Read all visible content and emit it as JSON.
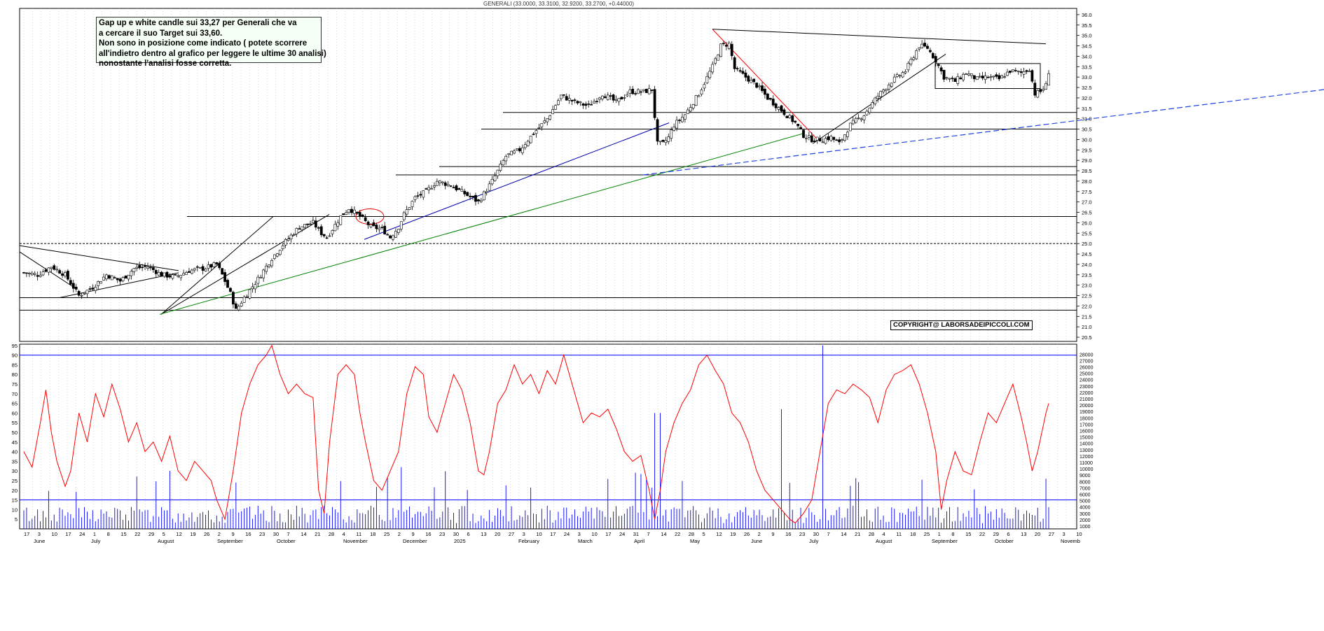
{
  "chart_data": {
    "type": "line",
    "title": "GENERALI (33.0000, 33.3100, 32.9200, 33.2700, +0.44000)",
    "annotation": {
      "lines": [
        "Gap up e white candle sui 33,27 per Generali che va",
        "a cercare il suo Target sui 33,60.",
        "Non sono in posizione come indicato ( potete scorrere",
        "all'indietro dentro al grafico per leggere le ultime 30 analisi)",
        "nonostante l'analisi fosse corretta."
      ]
    },
    "copyright": "COPYRIGHT@ LABORSADEIPICCOLI.COM",
    "price_panel": {
      "ylim": [
        20.3,
        36.3
      ],
      "yticks": [
        "20.5",
        "21.0",
        "21.5",
        "22.0",
        "22.5",
        "23.0",
        "23.5",
        "24.0",
        "24.5",
        "25.0",
        "25.5",
        "26.0",
        "26.5",
        "27.0",
        "27.5",
        "28.0",
        "28.5",
        "29.0",
        "29.5",
        "30.0",
        "30.5",
        "31.0",
        "31.5",
        "32.0",
        "32.5",
        "33.0",
        "33.5",
        "34.0",
        "34.5",
        "35.0",
        "35.5",
        "36.0"
      ],
      "close_series": {
        "name": "Close",
        "points": [
          [
            0,
            23.6
          ],
          [
            5,
            23.5
          ],
          [
            10,
            23.9
          ],
          [
            15,
            23.5
          ],
          [
            18,
            22.9
          ],
          [
            20,
            22.5
          ],
          [
            25,
            22.9
          ],
          [
            30,
            23.5
          ],
          [
            35,
            23.2
          ],
          [
            40,
            23.8
          ],
          [
            45,
            23.9
          ],
          [
            50,
            23.5
          ],
          [
            55,
            23.4
          ],
          [
            60,
            23.7
          ],
          [
            65,
            23.8
          ],
          [
            70,
            24.0
          ],
          [
            72,
            23.5
          ],
          [
            75,
            22.6
          ],
          [
            77,
            21.8
          ],
          [
            80,
            22.4
          ],
          [
            85,
            23.3
          ],
          [
            90,
            24.3
          ],
          [
            95,
            25.1
          ],
          [
            100,
            25.8
          ],
          [
            105,
            26.0
          ],
          [
            108,
            25.5
          ],
          [
            110,
            25.3
          ],
          [
            115,
            26.3
          ],
          [
            118,
            26.7
          ],
          [
            122,
            26.3
          ],
          [
            126,
            25.8
          ],
          [
            130,
            25.7
          ],
          [
            133,
            25.3
          ],
          [
            136,
            25.8
          ],
          [
            138,
            26.4
          ],
          [
            142,
            27.2
          ],
          [
            146,
            27.5
          ],
          [
            150,
            28.0
          ],
          [
            155,
            27.8
          ],
          [
            160,
            27.4
          ],
          [
            165,
            27.0
          ],
          [
            170,
            28.0
          ],
          [
            175,
            29.2
          ],
          [
            180,
            29.5
          ],
          [
            185,
            30.3
          ],
          [
            190,
            31.0
          ],
          [
            195,
            32.1
          ],
          [
            200,
            31.8
          ],
          [
            205,
            31.6
          ],
          [
            210,
            32.2
          ],
          [
            215,
            31.8
          ],
          [
            220,
            32.3
          ],
          [
            225,
            32.3
          ],
          [
            228,
            32.4
          ],
          [
            230,
            29.8
          ],
          [
            232,
            29.8
          ],
          [
            234,
            30.1
          ],
          [
            236,
            30.7
          ],
          [
            240,
            31.2
          ],
          [
            245,
            32.2
          ],
          [
            250,
            33.5
          ],
          [
            253,
            34.5
          ],
          [
            256,
            34.6
          ],
          [
            258,
            33.4
          ],
          [
            262,
            33.0
          ],
          [
            266,
            32.6
          ],
          [
            270,
            32.0
          ],
          [
            275,
            31.4
          ],
          [
            280,
            30.8
          ],
          [
            283,
            30.2
          ],
          [
            286,
            30.0
          ],
          [
            290,
            30.0
          ],
          [
            293,
            30.1
          ],
          [
            296,
            29.8
          ],
          [
            300,
            30.7
          ],
          [
            305,
            31.2
          ],
          [
            310,
            32.1
          ],
          [
            315,
            32.8
          ],
          [
            320,
            33.3
          ],
          [
            325,
            34.5
          ],
          [
            328,
            34.4
          ],
          [
            331,
            33.8
          ],
          [
            334,
            33.0
          ],
          [
            338,
            32.8
          ],
          [
            342,
            33.2
          ],
          [
            346,
            32.9
          ],
          [
            350,
            33.0
          ],
          [
            354,
            32.9
          ],
          [
            358,
            33.3
          ],
          [
            362,
            33.2
          ],
          [
            365,
            33.4
          ],
          [
            367,
            32.2
          ],
          [
            369,
            32.3
          ],
          [
            371,
            32.6
          ],
          [
            372,
            33.27
          ]
        ]
      }
    },
    "rsi_panel": {
      "name": "RSI",
      "ylim": [
        0,
        100
      ],
      "yticks": [
        "5",
        "10",
        "15",
        "20",
        "25",
        "30",
        "35",
        "40",
        "45",
        "50",
        "55",
        "60",
        "65",
        "70",
        "75",
        "80",
        "85",
        "90",
        "95"
      ],
      "levels": [
        15,
        90
      ],
      "points": [
        [
          0,
          40
        ],
        [
          3,
          32
        ],
        [
          6,
          55
        ],
        [
          8,
          72
        ],
        [
          10,
          50
        ],
        [
          12,
          35
        ],
        [
          15,
          22
        ],
        [
          17,
          30
        ],
        [
          20,
          60
        ],
        [
          23,
          45
        ],
        [
          26,
          70
        ],
        [
          29,
          58
        ],
        [
          32,
          75
        ],
        [
          35,
          62
        ],
        [
          38,
          45
        ],
        [
          41,
          55
        ],
        [
          44,
          40
        ],
        [
          47,
          45
        ],
        [
          50,
          35
        ],
        [
          53,
          48
        ],
        [
          56,
          30
        ],
        [
          59,
          25
        ],
        [
          62,
          35
        ],
        [
          65,
          30
        ],
        [
          68,
          25
        ],
        [
          70,
          15
        ],
        [
          73,
          5
        ],
        [
          76,
          30
        ],
        [
          79,
          60
        ],
        [
          82,
          75
        ],
        [
          85,
          85
        ],
        [
          88,
          90
        ],
        [
          90,
          95
        ],
        [
          93,
          80
        ],
        [
          96,
          70
        ],
        [
          99,
          75
        ],
        [
          102,
          70
        ],
        [
          105,
          68
        ],
        [
          107,
          20
        ],
        [
          109,
          8
        ],
        [
          111,
          45
        ],
        [
          114,
          80
        ],
        [
          117,
          85
        ],
        [
          120,
          80
        ],
        [
          122,
          60
        ],
        [
          124,
          45
        ],
        [
          127,
          25
        ],
        [
          130,
          20
        ],
        [
          133,
          30
        ],
        [
          136,
          40
        ],
        [
          139,
          70
        ],
        [
          142,
          84
        ],
        [
          145,
          80
        ],
        [
          147,
          58
        ],
        [
          150,
          50
        ],
        [
          153,
          65
        ],
        [
          156,
          80
        ],
        [
          159,
          72
        ],
        [
          162,
          55
        ],
        [
          165,
          30
        ],
        [
          167,
          28
        ],
        [
          169,
          40
        ],
        [
          172,
          65
        ],
        [
          175,
          72
        ],
        [
          178,
          85
        ],
        [
          181,
          75
        ],
        [
          184,
          80
        ],
        [
          187,
          70
        ],
        [
          190,
          82
        ],
        [
          193,
          75
        ],
        [
          196,
          90
        ],
        [
          198,
          80
        ],
        [
          200,
          70
        ],
        [
          203,
          55
        ],
        [
          206,
          60
        ],
        [
          209,
          58
        ],
        [
          212,
          62
        ],
        [
          215,
          52
        ],
        [
          218,
          40
        ],
        [
          221,
          35
        ],
        [
          224,
          38
        ],
        [
          227,
          20
        ],
        [
          229,
          5
        ],
        [
          231,
          20
        ],
        [
          233,
          40
        ],
        [
          236,
          55
        ],
        [
          239,
          65
        ],
        [
          242,
          72
        ],
        [
          245,
          85
        ],
        [
          248,
          90
        ],
        [
          251,
          82
        ],
        [
          254,
          75
        ],
        [
          257,
          60
        ],
        [
          260,
          55
        ],
        [
          263,
          45
        ],
        [
          266,
          30
        ],
        [
          269,
          20
        ],
        [
          272,
          15
        ],
        [
          275,
          10
        ],
        [
          278,
          5
        ],
        [
          280,
          3
        ],
        [
          283,
          8
        ],
        [
          286,
          15
        ],
        [
          289,
          40
        ],
        [
          292,
          65
        ],
        [
          295,
          72
        ],
        [
          298,
          70
        ],
        [
          301,
          75
        ],
        [
          304,
          72
        ],
        [
          307,
          68
        ],
        [
          310,
          55
        ],
        [
          313,
          72
        ],
        [
          316,
          80
        ],
        [
          319,
          82
        ],
        [
          322,
          85
        ],
        [
          325,
          75
        ],
        [
          328,
          60
        ],
        [
          331,
          40
        ],
        [
          333,
          10
        ],
        [
          335,
          25
        ],
        [
          338,
          40
        ],
        [
          341,
          30
        ],
        [
          344,
          28
        ],
        [
          347,
          45
        ],
        [
          350,
          60
        ],
        [
          353,
          55
        ],
        [
          356,
          65
        ],
        [
          359,
          75
        ],
        [
          362,
          58
        ],
        [
          364,
          45
        ],
        [
          366,
          30
        ],
        [
          368,
          40
        ],
        [
          371,
          60
        ],
        [
          372,
          65
        ]
      ]
    },
    "volume_panel": {
      "name": "Volume",
      "yticks": [
        "1000",
        "2000",
        "3000",
        "4000",
        "5000",
        "6000",
        "7000",
        "8000",
        "9000",
        "10000",
        "11000",
        "12000",
        "13000",
        "14000",
        "15000",
        "16000",
        "17000",
        "18000",
        "19000",
        "20000",
        "21000",
        "22000",
        "23000",
        "24000",
        "25000",
        "26000",
        "27000",
        "28000"
      ]
    },
    "x_axis": {
      "day_labels": [
        "17",
        "3",
        "10",
        "17",
        "24",
        "1",
        "8",
        "15",
        "22",
        "29",
        "5",
        "12",
        "19",
        "26",
        "2",
        "9",
        "16",
        "23",
        "30",
        "7",
        "14",
        "21",
        "28",
        "4",
        "11",
        "18",
        "25",
        "2",
        "9",
        "16",
        "23",
        "30",
        "6",
        "13",
        "20",
        "27",
        "3",
        "10",
        "17",
        "24",
        "3",
        "10",
        "17",
        "24",
        "31",
        "7",
        "14",
        "22",
        "28",
        "5",
        "12",
        "19",
        "26",
        "2",
        "9",
        "16",
        "23",
        "30",
        "7",
        "14",
        "21",
        "28",
        "4",
        "11",
        "18",
        "25",
        "1",
        "8",
        "15",
        "22",
        "29",
        "6",
        "13",
        "20",
        "27",
        "3",
        "10"
      ],
      "month_labels": [
        "June",
        "July",
        "August",
        "September",
        "October",
        "November",
        "December",
        "2025",
        "February",
        "March",
        "April",
        "May",
        "June",
        "July",
        "August",
        "September",
        "October",
        "Novemb"
      ]
    },
    "lines_colors": {
      "candles": "#000000",
      "rsi": "#ff0000",
      "volume": "#0000ff",
      "rising_support_1": "#008000",
      "rising_support_2": "#0000aa",
      "dashed_support": "#2244dd",
      "falling_line": "#ff0000"
    },
    "grid": true
  }
}
